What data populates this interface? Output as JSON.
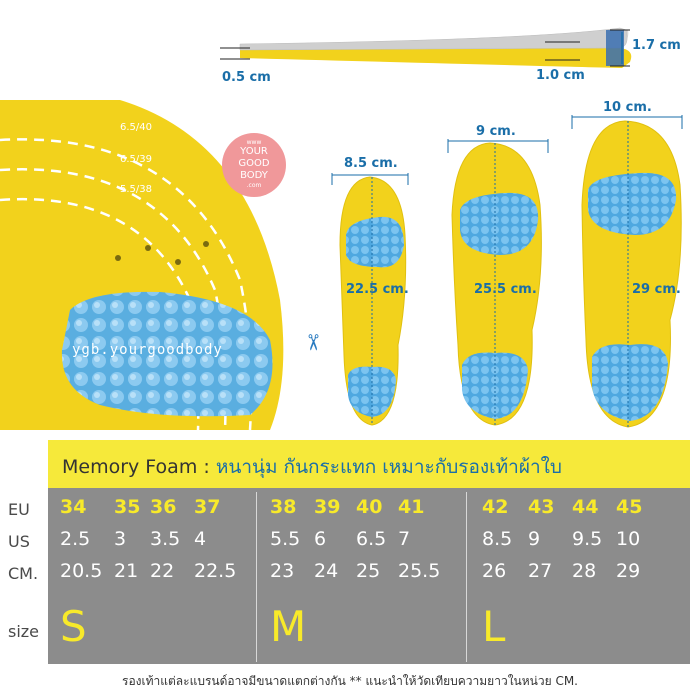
{
  "top_profile": {
    "label_thin": "0.5 cm",
    "label_mid": "1.0 cm",
    "label_thick": "1.7 cm"
  },
  "insoles": [
    {
      "width_label": "8.5 cm.",
      "length_label": "22.5 cm."
    },
    {
      "width_label": "9 cm.",
      "length_label": "25.5 cm."
    },
    {
      "width_label": "10 cm.",
      "length_label": "29 cm."
    }
  ],
  "logo": {
    "line1": "YOUR",
    "line2": "GOOD",
    "line3": "BODY",
    "small_top": "www",
    "small_bottom": ".com"
  },
  "watermark": "ygb.yourgoodbody",
  "closeup": {
    "size_marks": [
      "6.5/40",
      "6.5/39",
      "5.5/38"
    ]
  },
  "table": {
    "header_title": "Memory Foam",
    "header_sep": " : ",
    "header_desc": "หนานุ่ม กันกระแทก เหมาะกับรองเท้าผ้าใบ",
    "row_labels": {
      "eu": "EU",
      "us": "US",
      "cm": "CM.",
      "size": "size"
    },
    "groups": [
      {
        "eu": [
          "34",
          "35",
          "36",
          "37"
        ],
        "us": [
          "2.5",
          "3",
          "3.5",
          "4"
        ],
        "cm": [
          "20.5",
          "21",
          "22",
          "22.5"
        ],
        "size": "S"
      },
      {
        "eu": [
          "38",
          "39",
          "40",
          "41"
        ],
        "us": [
          "5.5",
          "6",
          "6.5",
          "7"
        ],
        "cm": [
          "23",
          "24",
          "25",
          "25.5"
        ],
        "size": "M"
      },
      {
        "eu": [
          "42",
          "43",
          "44",
          "45"
        ],
        "us": [
          "8.5",
          "9",
          "9.5",
          "10"
        ],
        "cm": [
          "26",
          "27",
          "28",
          "29"
        ],
        "size": "L"
      }
    ]
  },
  "footnote": "รองเท้าแต่ละแบรนด์อาจมีขนาดแตกต่างกัน ** แนะนำให้วัดเทียบความยาวในหน่วย CM.",
  "colors": {
    "accent_yellow": "#f8ea2a",
    "insole_yellow": "#f2d21c",
    "gel_blue": "#5fb0e0",
    "dim_blue": "#1a6ea8",
    "table_gray": "#8c8c8c"
  }
}
